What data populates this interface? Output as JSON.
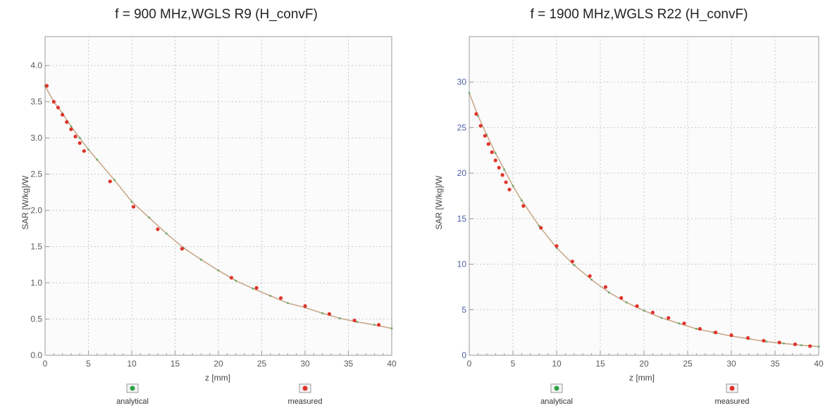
{
  "colors": {
    "analytical": "#2e9e45",
    "measured": "#e0332b",
    "curve": "#c9a98a",
    "grid": "#c8c8c8",
    "axis": "#9a9a9a",
    "tick_text": "#5a5a5a",
    "tick_text_right_y": "#4b5fa8"
  },
  "legend": {
    "analytical": "analytical",
    "measured": "measured"
  },
  "chart_data": [
    {
      "type": "scatter",
      "title": "f = 900 MHz,WGLS R9 (H_convF)",
      "xlabel": "z [mm]",
      "ylabel": "SAR [W/kg]/W",
      "xlim": [
        0,
        40
      ],
      "ylim": [
        0,
        4.4
      ],
      "xticks": [
        "0",
        "5",
        "10",
        "15",
        "20",
        "25",
        "30",
        "35",
        "40"
      ],
      "yticks": [
        "0.0",
        "0.5",
        "1.0",
        "1.5",
        "2.0",
        "2.5",
        "3.0",
        "3.5",
        "4.0"
      ],
      "ytick_values": [
        0,
        0.5,
        1.0,
        1.5,
        2.0,
        2.5,
        3.0,
        3.5,
        4.0
      ],
      "grid": true,
      "legend_position": "bottom",
      "series": [
        {
          "name": "analytical",
          "x": [
            0,
            1,
            2,
            3,
            4,
            5,
            6,
            8,
            10,
            12,
            14,
            16,
            18,
            20,
            22,
            24,
            26,
            28,
            30,
            32,
            34,
            36,
            38,
            40
          ],
          "y": [
            3.72,
            3.5,
            3.34,
            3.16,
            3.0,
            2.84,
            2.7,
            2.42,
            2.12,
            1.9,
            1.68,
            1.48,
            1.32,
            1.17,
            1.03,
            0.92,
            0.82,
            0.72,
            0.66,
            0.58,
            0.51,
            0.46,
            0.42,
            0.37
          ]
        },
        {
          "name": "measured",
          "x": [
            0.2,
            1.0,
            1.5,
            2.0,
            2.5,
            3.0,
            3.5,
            4.0,
            4.5,
            7.5,
            10.2,
            13.0,
            15.8,
            21.5,
            24.4,
            27.2,
            30.0,
            32.8,
            35.7,
            38.5
          ],
          "y": [
            3.72,
            3.5,
            3.42,
            3.32,
            3.22,
            3.12,
            3.02,
            2.93,
            2.82,
            2.4,
            2.05,
            1.74,
            1.47,
            1.07,
            0.93,
            0.79,
            0.68,
            0.57,
            0.48,
            0.42
          ]
        }
      ]
    },
    {
      "type": "scatter",
      "title": "f = 1900 MHz,WGLS R22 (H_convF)",
      "xlabel": "z [mm]",
      "ylabel": "SAR [W/kg]/W",
      "xlim": [
        0,
        40
      ],
      "ylim": [
        0,
        35
      ],
      "xticks": [
        "0",
        "5",
        "10",
        "15",
        "20",
        "25",
        "30",
        "35",
        "40"
      ],
      "yticks": [
        "0",
        "5",
        "10",
        "15",
        "20",
        "25",
        "30"
      ],
      "ytick_values": [
        0,
        5,
        10,
        15,
        20,
        25,
        30
      ],
      "grid": true,
      "legend_position": "bottom",
      "series": [
        {
          "name": "analytical",
          "x": [
            0,
            1,
            2,
            3,
            4,
            5,
            6,
            8,
            10,
            12,
            14,
            16,
            18,
            20,
            22,
            24,
            26,
            28,
            30,
            32,
            34,
            36,
            38,
            40
          ],
          "y": [
            28.8,
            26.3,
            24.2,
            22.2,
            20.4,
            18.6,
            17.0,
            14.2,
            11.8,
            9.9,
            8.3,
            6.9,
            5.8,
            4.9,
            4.1,
            3.5,
            2.9,
            2.5,
            2.1,
            1.8,
            1.5,
            1.3,
            1.1,
            0.95
          ]
        },
        {
          "name": "measured",
          "x": [
            0.8,
            1.3,
            1.8,
            2.2,
            2.6,
            3.0,
            3.4,
            3.8,
            4.2,
            4.6,
            6.2,
            8.2,
            10.0,
            11.8,
            13.8,
            15.6,
            17.4,
            19.2,
            21.0,
            22.8,
            24.6,
            26.4,
            28.2,
            30.0,
            31.9,
            33.7,
            35.5,
            37.3,
            39.0
          ],
          "y": [
            26.5,
            25.2,
            24.1,
            23.2,
            22.3,
            21.4,
            20.6,
            19.8,
            19.0,
            18.2,
            16.4,
            14.0,
            12.0,
            10.3,
            8.7,
            7.5,
            6.3,
            5.4,
            4.7,
            4.1,
            3.5,
            2.9,
            2.5,
            2.2,
            1.9,
            1.6,
            1.4,
            1.2,
            1.0
          ]
        }
      ]
    }
  ]
}
